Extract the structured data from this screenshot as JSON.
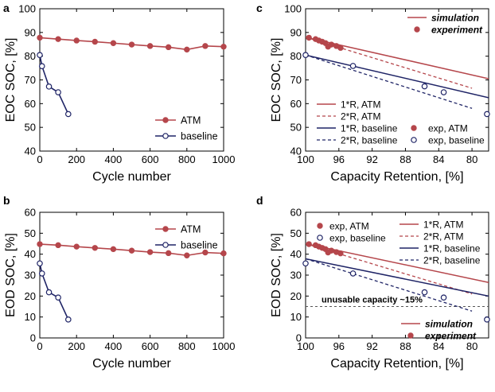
{
  "colors": {
    "atm": "#b5464b",
    "baseline": "#1f2466",
    "axis": "#000000",
    "ref": "#555555"
  },
  "chart_data": [
    {
      "panel": "a",
      "type": "line",
      "xlabel": "Cycle number",
      "ylabel": "EOC SOC, [%]",
      "xlim": [
        0,
        1000
      ],
      "ylim": [
        40,
        100
      ],
      "xticks": [
        "0",
        "200",
        "400",
        "600",
        "800",
        "1000"
      ],
      "yticks": [
        "40",
        "50",
        "60",
        "70",
        "80",
        "90",
        "100"
      ],
      "legend_position": "bottom-right",
      "series": [
        {
          "name": "ATM",
          "key": "atm",
          "marker": "filled",
          "x": [
            0,
            100,
            200,
            300,
            400,
            500,
            600,
            700,
            800,
            900,
            1000
          ],
          "y": [
            87.8,
            87.2,
            86.6,
            86.1,
            85.5,
            84.9,
            84.3,
            83.8,
            82.8,
            84.3,
            84.0
          ]
        },
        {
          "name": "baseline",
          "key": "baseline",
          "marker": "open",
          "x": [
            0,
            12,
            50,
            100,
            155
          ],
          "y": [
            80.5,
            75.8,
            67.2,
            64.8,
            55.6
          ]
        }
      ]
    },
    {
      "panel": "b",
      "type": "line",
      "xlabel": "Cycle number",
      "ylabel": "EOD SOC, [%]",
      "xlim": [
        0,
        1000
      ],
      "ylim": [
        0,
        60
      ],
      "xticks": [
        "0",
        "200",
        "400",
        "600",
        "800",
        "1000"
      ],
      "yticks": [
        "0",
        "10",
        "20",
        "30",
        "40",
        "50",
        "60"
      ],
      "legend_position": "top-right",
      "series": [
        {
          "name": "ATM",
          "key": "atm",
          "marker": "filled",
          "x": [
            0,
            100,
            200,
            300,
            400,
            500,
            600,
            700,
            800,
            900,
            1000
          ],
          "y": [
            44.8,
            44.3,
            43.6,
            43.0,
            42.4,
            41.7,
            41.0,
            40.5,
            39.4,
            40.8,
            40.4
          ]
        },
        {
          "name": "baseline",
          "key": "baseline",
          "marker": "open",
          "x": [
            0,
            12,
            50,
            100,
            155
          ],
          "y": [
            35.6,
            30.8,
            21.8,
            19.3,
            8.8
          ]
        }
      ]
    },
    {
      "panel": "c",
      "type": "line",
      "xlabel": "Capacity Retention, [%]",
      "ylabel": "EOC SOC, [%]",
      "xlim": [
        100,
        78
      ],
      "ylim": [
        40,
        100
      ],
      "xticks": [
        "100",
        "96",
        "92",
        "88",
        "84",
        "80"
      ],
      "yticks": [
        "40",
        "50",
        "60",
        "70",
        "80",
        "90",
        "100"
      ],
      "legend_top": {
        "position": "top-right",
        "entries": [
          {
            "label": "simulation",
            "kind": "line",
            "key": "atm"
          },
          {
            "label": "experiment",
            "kind": "dot",
            "key": "atm"
          }
        ]
      },
      "legend_bottom": {
        "position": "bottom",
        "entries": [
          {
            "label": "1*R, ATM",
            "kind": "solid",
            "key": "atm"
          },
          {
            "label": "2*R, ATM",
            "kind": "dash",
            "key": "atm"
          },
          {
            "label": "1*R, baseline",
            "kind": "solid",
            "key": "baseline"
          },
          {
            "label": "2*R, baseline",
            "kind": "dash",
            "key": "baseline"
          },
          {
            "label": "exp, ATM",
            "kind": "dot",
            "key": "atm"
          },
          {
            "label": "exp, baseline",
            "kind": "open",
            "key": "baseline"
          }
        ]
      },
      "lines": [
        {
          "name": "1*R, ATM",
          "key": "atm",
          "style": "solid",
          "x": [
            100,
            78
          ],
          "y": [
            88.0,
            70.5
          ]
        },
        {
          "name": "2*R, ATM",
          "key": "atm",
          "style": "dash",
          "x": [
            100,
            80
          ],
          "y": [
            88.0,
            66.5
          ]
        },
        {
          "name": "1*R, baseline",
          "key": "baseline",
          "style": "solid",
          "x": [
            100,
            78
          ],
          "y": [
            80.5,
            62.5
          ]
        },
        {
          "name": "2*R, baseline",
          "key": "baseline",
          "style": "dash",
          "x": [
            100,
            80
          ],
          "y": [
            80.5,
            58.0
          ]
        }
      ],
      "points": [
        {
          "name": "exp, ATM",
          "key": "atm",
          "marker": "filled",
          "x": [
            99.6,
            98.8,
            98.4,
            98.0,
            97.6,
            97.3,
            96.9,
            96.3,
            95.8
          ],
          "y": [
            87.8,
            87.2,
            86.6,
            86.1,
            85.5,
            84.0,
            84.9,
            84.3,
            83.5
          ]
        },
        {
          "name": "exp, baseline",
          "key": "baseline",
          "marker": "open",
          "x": [
            100,
            94.3,
            85.7,
            83.4,
            78.2
          ],
          "y": [
            80.5,
            75.9,
            67.3,
            64.8,
            55.6
          ]
        }
      ]
    },
    {
      "panel": "d",
      "type": "line",
      "xlabel": "Capacity Retention, [%]",
      "ylabel": "EOD SOC, [%]",
      "xlim": [
        100,
        78
      ],
      "ylim": [
        0,
        60
      ],
      "xticks": [
        "100",
        "96",
        "92",
        "88",
        "84",
        "80"
      ],
      "yticks": [
        "0",
        "10",
        "20",
        "30",
        "40",
        "50",
        "60"
      ],
      "legend_top_left": {
        "position": "top-left",
        "entries": [
          {
            "label": "exp, ATM",
            "kind": "dot",
            "key": "atm"
          },
          {
            "label": "exp, baseline",
            "kind": "open",
            "key": "baseline"
          }
        ]
      },
      "legend_top_right": {
        "position": "top-right",
        "entries": [
          {
            "label": "1*R, ATM",
            "kind": "solid",
            "key": "atm"
          },
          {
            "label": "2*R, ATM",
            "kind": "dash",
            "key": "atm"
          },
          {
            "label": "1*R, baseline",
            "kind": "solid",
            "key": "baseline"
          },
          {
            "label": "2*R, baseline",
            "kind": "dash",
            "key": "baseline"
          }
        ]
      },
      "legend_bottom": {
        "position": "bottom-right",
        "entries": [
          {
            "label": "simulation",
            "kind": "line",
            "key": "atm"
          },
          {
            "label": "experiment",
            "kind": "dot",
            "key": "atm"
          }
        ]
      },
      "annotation": {
        "text": "unusable capacity ~15%",
        "y": 15
      },
      "lines": [
        {
          "name": "1*R, ATM",
          "key": "atm",
          "style": "solid",
          "x": [
            100,
            78
          ],
          "y": [
            45.0,
            26.5
          ]
        },
        {
          "name": "2*R, ATM",
          "key": "atm",
          "style": "dash",
          "x": [
            100,
            80
          ],
          "y": [
            45.0,
            21.0
          ]
        },
        {
          "name": "1*R, baseline",
          "key": "baseline",
          "style": "solid",
          "x": [
            100,
            78
          ],
          "y": [
            37.8,
            20.0
          ]
        },
        {
          "name": "2*R, baseline",
          "key": "baseline",
          "style": "dash",
          "x": [
            100,
            80
          ],
          "y": [
            37.8,
            12.8
          ]
        }
      ],
      "points": [
        {
          "name": "exp, ATM",
          "key": "atm",
          "marker": "filled",
          "x": [
            99.6,
            98.8,
            98.4,
            98.0,
            97.6,
            97.3,
            96.9,
            96.3,
            95.8
          ],
          "y": [
            44.8,
            44.3,
            43.6,
            43.0,
            42.4,
            40.8,
            41.7,
            41.0,
            40.4
          ]
        },
        {
          "name": "exp, baseline",
          "key": "baseline",
          "marker": "open",
          "x": [
            100,
            94.3,
            85.7,
            83.4,
            78.2
          ],
          "y": [
            35.6,
            30.8,
            21.8,
            19.3,
            8.8
          ]
        }
      ]
    }
  ]
}
